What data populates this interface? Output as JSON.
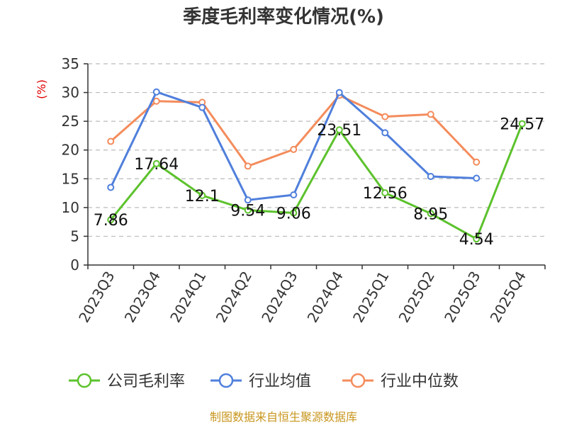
{
  "chart_data": {
    "type": "line",
    "title": "季度毛利率变化情况(%)",
    "ylabel": "(%)",
    "xlabel": "",
    "ylim": [
      0,
      35
    ],
    "yticks": [
      0,
      5,
      10,
      15,
      20,
      25,
      30,
      35
    ],
    "grid": true,
    "legend_position": "bottom",
    "categories": [
      "2023Q3",
      "2023Q4",
      "2024Q1",
      "2024Q2",
      "2024Q3",
      "2024Q4",
      "2025Q1",
      "2025Q2",
      "2025Q3",
      "2025Q4"
    ],
    "series": [
      {
        "name": "公司毛利率",
        "color": "#5cc22c",
        "values": [
          7.86,
          17.64,
          12.1,
          9.54,
          9.06,
          23.51,
          12.56,
          8.95,
          4.54,
          24.57
        ],
        "labels": [
          "7.86",
          "17.64",
          "12.1",
          "9.54",
          "9.06",
          "23.51",
          "12.56",
          "8.95",
          "4.54",
          "24.57"
        ]
      },
      {
        "name": "行业均值",
        "color": "#4f7fdc",
        "values": [
          13.5,
          30.1,
          27.4,
          11.3,
          12.2,
          30.0,
          23.0,
          15.4,
          15.1,
          null
        ]
      },
      {
        "name": "行业中位数",
        "color": "#f48c5c",
        "values": [
          21.5,
          28.5,
          28.3,
          17.2,
          20.1,
          29.5,
          25.8,
          26.2,
          17.9,
          null
        ]
      }
    ]
  },
  "colors": {
    "ylabel": "#e00000",
    "source": "#c8961e",
    "grid": "#bbbbbb",
    "axis": "#333333"
  },
  "footer": {
    "source": "制图数据来自恒生聚源数据库"
  }
}
